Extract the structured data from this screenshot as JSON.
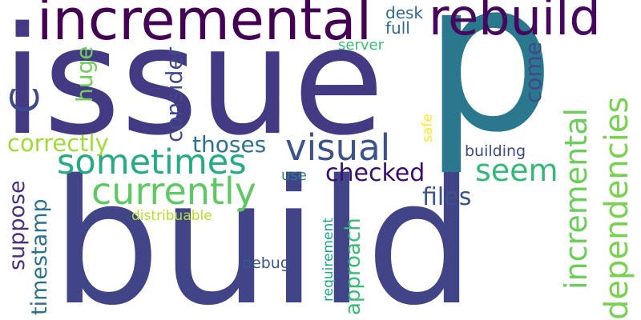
{
  "words": {
    "build": {
      "text": "build",
      "color": "#414487"
    },
    "issue": {
      "text": "issue",
      "color": "#443a83"
    },
    "p": {
      "text": "p",
      "color": "#2a788e"
    },
    "incremental_top": {
      "text": "incremental",
      "color": "#440154"
    },
    "rebuild": {
      "text": "rebuild",
      "color": "#46085c"
    },
    "currently": {
      "text": "currently",
      "color": "#5ec962"
    },
    "sometimes": {
      "text": "sometimes",
      "color": "#25ab82"
    },
    "visual": {
      "text": "visual",
      "color": "#3b528b"
    },
    "incremental_vertical": {
      "text": "incremental",
      "color": "#6ccd5a"
    },
    "dependencies": {
      "text": "dependencies",
      "color": "#7ad151"
    },
    "c": {
      "text": "C",
      "color": "#3e4989"
    },
    "consider": {
      "text": "consider",
      "color": "#3e4a89"
    },
    "seem": {
      "text": "seem",
      "color": "#35b779"
    },
    "checked": {
      "text": "checked",
      "color": "#3b0f70"
    },
    "correctly": {
      "text": "correctly",
      "color": "#a0da39"
    },
    "thoses": {
      "text": "thoses",
      "color": "#2c728e"
    },
    "files": {
      "text": "files",
      "color": "#3b528b"
    },
    "huge": {
      "text": "huge",
      "color": "#6ece58"
    },
    "come": {
      "text": "come",
      "color": "#3e4a89"
    },
    "suppose": {
      "text": "suppose",
      "color": "#472f7d"
    },
    "timestamp": {
      "text": "timestamp",
      "color": "#2c728e"
    },
    "approach": {
      "text": "approach",
      "color": "#3aba76"
    },
    "desk": {
      "text": "desk",
      "color": "#31688e"
    },
    "full": {
      "text": "full",
      "color": "#31688e"
    },
    "server": {
      "text": "server",
      "color": "#3fbc73"
    },
    "safe": {
      "text": "safe",
      "color": "#fde725"
    },
    "building": {
      "text": "building",
      "color": "#3e4989"
    },
    "use": {
      "text": "use",
      "color": "#2a788e"
    },
    "distribuable": {
      "text": "distribuable",
      "color": "#b5de2b"
    },
    "requirement": {
      "text": "requirement",
      "color": "#21a685"
    },
    "debug": {
      "text": "debug",
      "color": "#39568c"
    }
  }
}
